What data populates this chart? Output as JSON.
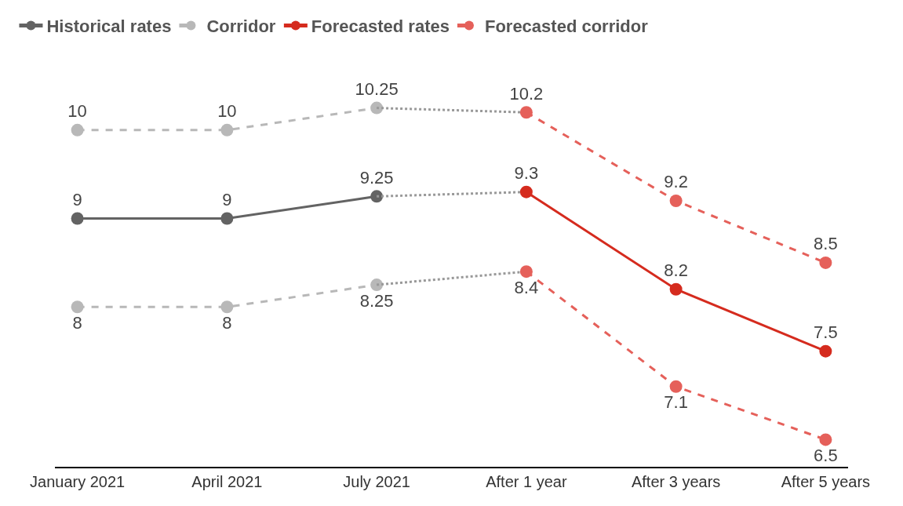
{
  "chart_data": {
    "type": "line",
    "categories": [
      "January 2021",
      "April 2021",
      "July 2021",
      "After 1 year",
      "After 3 years",
      "After 5 years"
    ],
    "series": [
      {
        "name": "Historical rates",
        "color": "#636363",
        "line_style": "solid",
        "marker": "circle",
        "values": [
          9,
          9,
          9.25,
          null,
          null,
          null
        ]
      },
      {
        "name": "Corridor",
        "color": "#b8b8b8",
        "line_style": "dashed",
        "marker": "circle",
        "values": [
          10,
          10,
          10.25,
          null,
          null,
          null
        ]
      },
      {
        "color": "#b8b8b8",
        "line_style": "dashed",
        "marker": "circle",
        "values": [
          8,
          8,
          8.25,
          null,
          null,
          null
        ]
      },
      {
        "color": "#999999",
        "line_style": "dotted",
        "marker": "none",
        "values": [
          null,
          null,
          10.25,
          10.2,
          null,
          null
        ],
        "value_labels": [
          null,
          null,
          null,
          null,
          null,
          null
        ]
      },
      {
        "color": "#999999",
        "line_style": "dotted",
        "marker": "none",
        "values": [
          null,
          null,
          9.25,
          9.3,
          null,
          null
        ],
        "value_labels": [
          null,
          null,
          null,
          null,
          null,
          null
        ]
      },
      {
        "color": "#999999",
        "line_style": "dotted",
        "marker": "none",
        "values": [
          null,
          null,
          8.25,
          8.4,
          null,
          null
        ],
        "value_labels": [
          null,
          null,
          null,
          null,
          null,
          null
        ]
      },
      {
        "name": "Forecasted rates",
        "color": "#d52b1e",
        "line_style": "solid",
        "marker": "circle",
        "values": [
          null,
          null,
          null,
          9.3,
          8.2,
          7.5
        ]
      },
      {
        "name": "Forecasted corridor",
        "color": "#e5605a",
        "line_style": "dashed",
        "marker": "circle",
        "values": [
          null,
          null,
          null,
          10.2,
          9.2,
          8.5
        ]
      },
      {
        "color": "#e5605a",
        "line_style": "dashed",
        "marker": "circle",
        "values": [
          null,
          null,
          null,
          8.4,
          7.1,
          6.5
        ]
      }
    ],
    "data_labels": true,
    "grid": false,
    "legend": "top left"
  }
}
